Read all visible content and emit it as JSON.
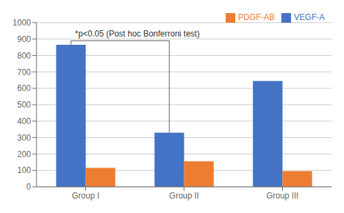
{
  "chart_data": {
    "type": "bar",
    "categories": [
      "Group I",
      "Group II",
      "Group III"
    ],
    "series": [
      {
        "name": "VEGF-A",
        "color": "#4472C4",
        "values": [
          865,
          330,
          645
        ]
      },
      {
        "name": "PDGF-AB",
        "color": "#ED7D31",
        "values": [
          115,
          155,
          95
        ]
      }
    ],
    "ylim": [
      0,
      1000
    ],
    "yticks": [
      0,
      100,
      200,
      300,
      400,
      500,
      600,
      700,
      800,
      900,
      1000
    ],
    "grid": true,
    "legend": "upper right",
    "annotation": "*p<0.05 (Post hoc Bonferroni test)",
    "significance_bracket": {
      "series": "VEGF-A",
      "from": "Group I",
      "to": "Group II",
      "y": 890
    }
  }
}
